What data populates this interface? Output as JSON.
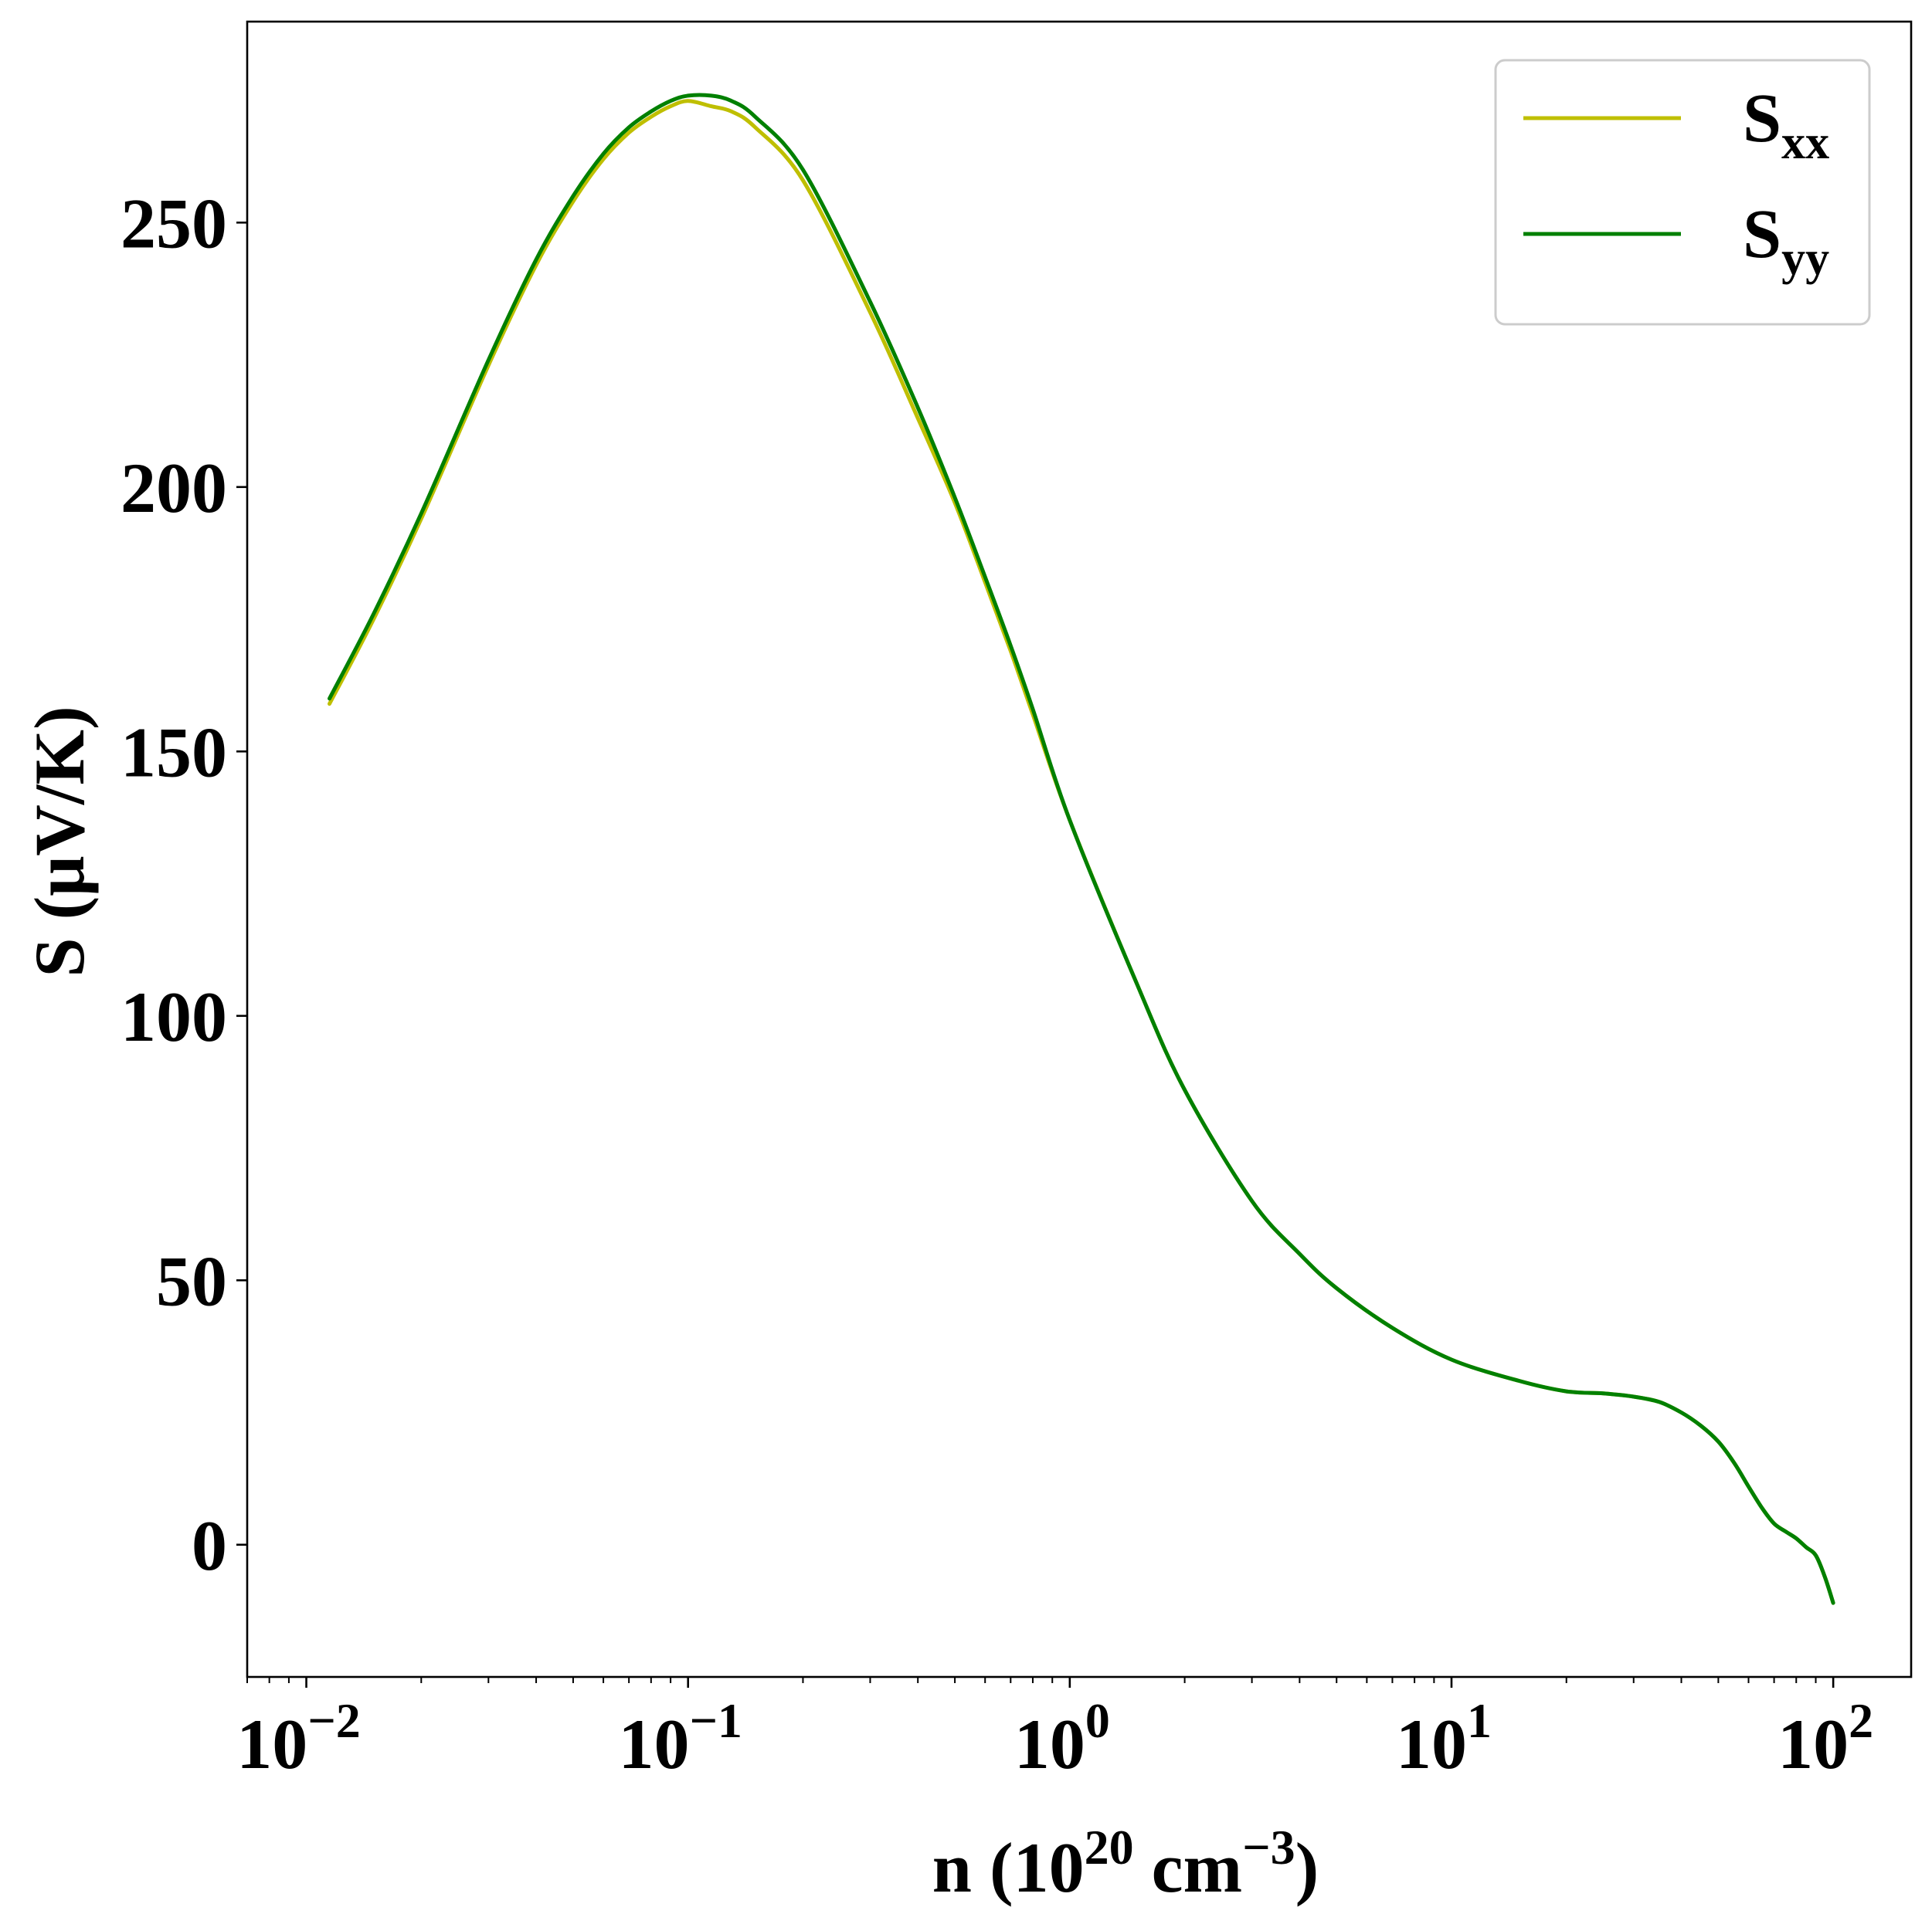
{
  "chart_data": {
    "type": "line",
    "xscale": "log",
    "xlim": [
      0.007,
      160
    ],
    "ylim": [
      -25,
      288
    ],
    "xlabel": "n (10^20 cm^-3)",
    "xlabel_parts": {
      "pre": "n (10",
      "exp1": "20",
      "mid": " cm",
      "exp2": "−3",
      "post": ")"
    },
    "ylabel": "S (μV/K)",
    "x_ticks": [
      {
        "value": 0.01,
        "base": "10",
        "exp": "−2"
      },
      {
        "value": 0.1,
        "base": "10",
        "exp": "−1"
      },
      {
        "value": 1,
        "base": "10",
        "exp": "0"
      },
      {
        "value": 10,
        "base": "10",
        "exp": "1"
      },
      {
        "value": 100,
        "base": "10",
        "exp": "2"
      }
    ],
    "y_ticks": [
      0,
      50,
      100,
      150,
      200,
      250
    ],
    "legend": {
      "position": "top-right",
      "entries": [
        {
          "base": "S",
          "sub": "xx",
          "color": "#bfbf00"
        },
        {
          "base": "S",
          "sub": "yy",
          "color": "#008000"
        }
      ]
    },
    "grid": false,
    "series": [
      {
        "name": "Sxx",
        "color": "#bfbf00",
        "x": [
          0.0115,
          0.015,
          0.02,
          0.03,
          0.04,
          0.05,
          0.06,
          0.07,
          0.08,
          0.09,
          0.1,
          0.115,
          0.13,
          0.15,
          0.2,
          0.3,
          0.4,
          0.5,
          0.6,
          0.7,
          0.8,
          1,
          1.5,
          2,
          3,
          4,
          5,
          7,
          10,
          15,
          20,
          25,
          30,
          35,
          40,
          45,
          50,
          55,
          60,
          65,
          70,
          75,
          80,
          85,
          90,
          95,
          100
        ],
        "y": [
          159,
          175,
          194,
          223,
          242,
          254,
          262,
          267,
          270,
          272,
          273,
          272,
          271,
          268,
          258,
          233,
          213,
          197,
          182,
          169,
          157,
          137,
          106,
          86,
          65,
          55,
          48.5,
          41,
          35,
          31,
          29,
          28.6,
          28,
          27,
          25,
          22.5,
          19.5,
          15.5,
          11,
          7,
          4,
          2.5,
          1.2,
          -0.5,
          -2,
          -6,
          -11
        ]
      },
      {
        "name": "Syy",
        "color": "#008000",
        "x": [
          0.0115,
          0.015,
          0.02,
          0.03,
          0.04,
          0.05,
          0.06,
          0.07,
          0.08,
          0.09,
          0.1,
          0.115,
          0.13,
          0.15,
          0.2,
          0.3,
          0.4,
          0.5,
          0.6,
          0.7,
          0.8,
          1,
          1.5,
          2,
          3,
          4,
          5,
          7,
          10,
          15,
          20,
          25,
          30,
          35,
          40,
          45,
          50,
          55,
          60,
          65,
          70,
          75,
          80,
          85,
          90,
          95,
          100
        ],
        "y": [
          160,
          176,
          195,
          224,
          243,
          255,
          263,
          268,
          271,
          273,
          274,
          274,
          273,
          270,
          260,
          235,
          215,
          198,
          183,
          170,
          158,
          137,
          106,
          86,
          65,
          55,
          48.5,
          41,
          35,
          31,
          29,
          28.6,
          28,
          27,
          25,
          22.5,
          19.5,
          15.5,
          11,
          7,
          4,
          2.5,
          1.2,
          -0.5,
          -2,
          -6,
          -11
        ]
      }
    ]
  }
}
